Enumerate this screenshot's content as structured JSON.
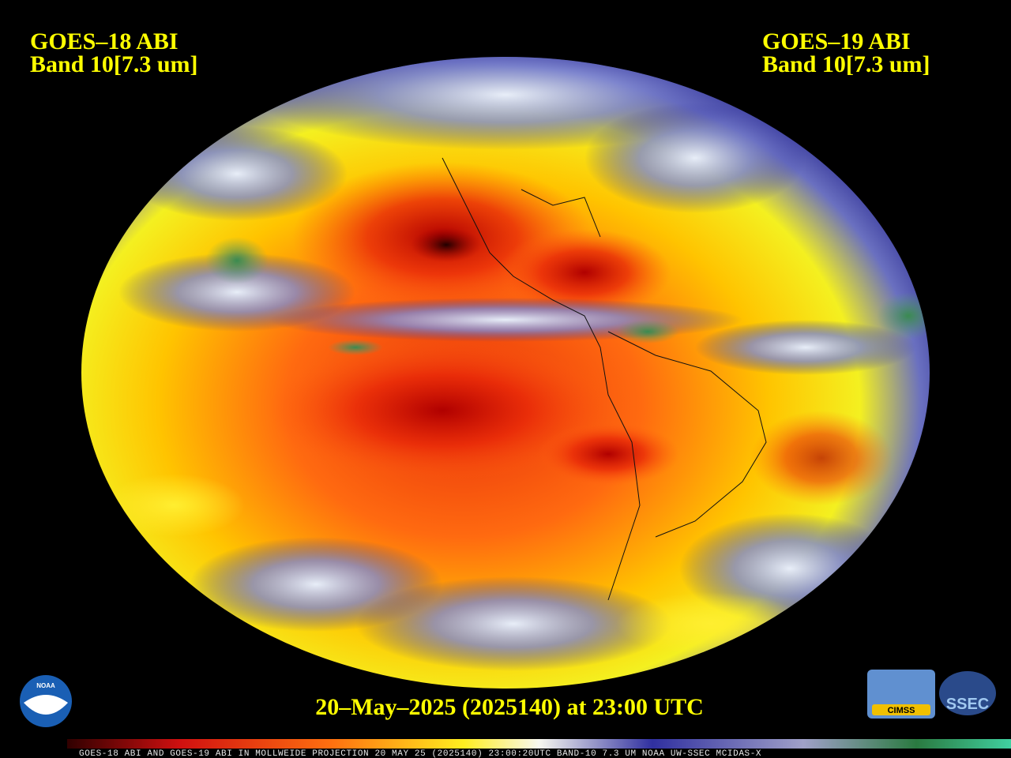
{
  "header": {
    "left": {
      "line1": "GOES–18 ABI",
      "line2": "Band 10[7.3 um]"
    },
    "right": {
      "line1": "GOES–19 ABI",
      "line2": "Band 10[7.3 um]"
    }
  },
  "timestamp": "20–May–2025 (2025140) at 23:00 UTC",
  "logos": {
    "noaa": "NOAA",
    "cimss": "CIMSS",
    "ssec": "SSEC"
  },
  "colorbar_caption": "GOES-18 ABI AND GOES-19 ABI IN MOLLWEIDE PROJECTION 20 MAY 25 (2025140) 23:00:20UTC BAND-10 7.3 UM NOAA UW-SSEC MCIDAS-X"
}
